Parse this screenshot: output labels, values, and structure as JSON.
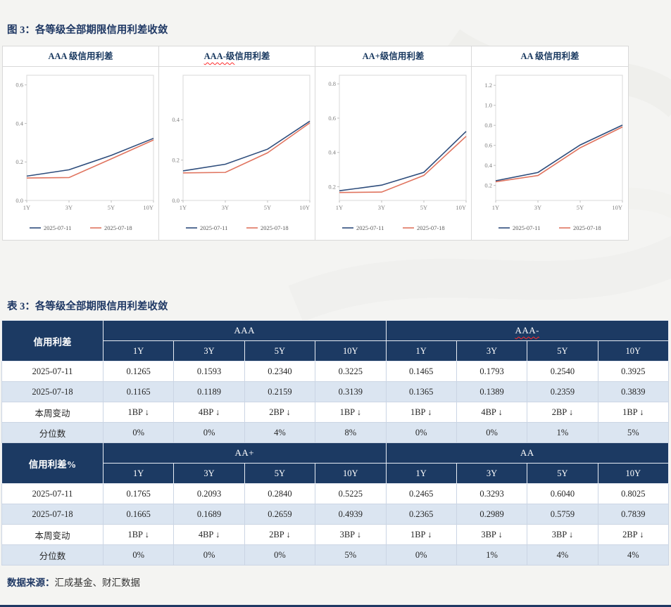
{
  "page": {
    "figure_title": "图 3：各等级全部期限信用利差收敛",
    "table_title": "表 3：各等级全部期限信用利差收敛",
    "source_label": "数据来源：",
    "source_text": "汇成基金、财汇数据"
  },
  "colors": {
    "series_blue": "#2e4d7c",
    "series_red": "#e0745f",
    "header_bg": "#1c3a63",
    "row_alt_bg": "#dbe5f1",
    "title_navy": "#1f3864",
    "axis_gray": "#7f7f7f"
  },
  "chart_data": [
    {
      "type": "line",
      "id": "aaa",
      "title_parts": [
        {
          "text": "AAA 级信用利差",
          "squiggle": false
        }
      ],
      "categories": [
        "1Y",
        "3Y",
        "5Y",
        "10Y"
      ],
      "ylim": [
        0,
        0.65
      ],
      "y_ticks": [
        0.0,
        0.2,
        0.4,
        0.6
      ],
      "legend_position": "bottom",
      "grid": false,
      "series": [
        {
          "name": "2025-07-11",
          "color": "#2e4d7c",
          "values": [
            0.1265,
            0.1593,
            0.234,
            0.3225
          ]
        },
        {
          "name": "2025-07-18",
          "color": "#e0745f",
          "values": [
            0.1165,
            0.1189,
            0.2159,
            0.3139
          ]
        }
      ]
    },
    {
      "type": "line",
      "id": "aaa-minus",
      "title_parts": [
        {
          "text": "AAA-级",
          "squiggle": true
        },
        {
          "text": "信用利差",
          "squiggle": false
        }
      ],
      "categories": [
        "1Y",
        "3Y",
        "5Y",
        "10Y"
      ],
      "ylim": [
        0,
        0.62
      ],
      "y_ticks": [
        0.0,
        0.2,
        0.4
      ],
      "legend_position": "bottom",
      "grid": false,
      "series": [
        {
          "name": "2025-07-11",
          "color": "#2e4d7c",
          "values": [
            0.1465,
            0.1793,
            0.254,
            0.3925
          ]
        },
        {
          "name": "2025-07-18",
          "color": "#e0745f",
          "values": [
            0.1365,
            0.1389,
            0.2359,
            0.3839
          ]
        }
      ]
    },
    {
      "type": "line",
      "id": "aa-plus",
      "title_parts": [
        {
          "text": "AA+级信用利差",
          "squiggle": false
        }
      ],
      "categories": [
        "1Y",
        "3Y",
        "5Y",
        "10Y"
      ],
      "ylim": [
        0.12,
        0.85
      ],
      "y_ticks": [
        0.2,
        0.4,
        0.6,
        0.8
      ],
      "legend_position": "bottom",
      "grid": false,
      "series": [
        {
          "name": "2025-07-11",
          "color": "#2e4d7c",
          "values": [
            0.1765,
            0.2093,
            0.284,
            0.5225
          ]
        },
        {
          "name": "2025-07-18",
          "color": "#e0745f",
          "values": [
            0.1665,
            0.1689,
            0.2659,
            0.4939
          ]
        }
      ]
    },
    {
      "type": "line",
      "id": "aa",
      "title_parts": [
        {
          "text": "AA 级信用利差",
          "squiggle": false
        }
      ],
      "categories": [
        "1Y",
        "3Y",
        "5Y",
        "10Y"
      ],
      "ylim": [
        0.05,
        1.3
      ],
      "y_ticks": [
        0.2,
        0.4,
        0.6,
        0.8,
        1.0,
        1.2
      ],
      "legend_position": "bottom",
      "grid": false,
      "series": [
        {
          "name": "2025-07-11",
          "color": "#2e4d7c",
          "values": [
            0.2465,
            0.3293,
            0.604,
            0.8025
          ]
        },
        {
          "name": "2025-07-18",
          "color": "#e0745f",
          "values": [
            0.2365,
            0.2989,
            0.5759,
            0.7839
          ]
        }
      ]
    }
  ],
  "table": {
    "blocks": [
      {
        "corner_label": "信用利差",
        "groups": [
          {
            "label": "AAA",
            "squiggle": false
          },
          {
            "label": "AAA-",
            "squiggle": true
          }
        ],
        "col_headers": [
          "1Y",
          "3Y",
          "5Y",
          "10Y",
          "1Y",
          "3Y",
          "5Y",
          "10Y"
        ],
        "rows": [
          {
            "label": "2025-07-11",
            "cells": [
              "0.1265",
              "0.1593",
              "0.2340",
              "0.3225",
              "0.1465",
              "0.1793",
              "0.2540",
              "0.3925"
            ]
          },
          {
            "label": "2025-07-18",
            "cells": [
              "0.1165",
              "0.1189",
              "0.2159",
              "0.3139",
              "0.1365",
              "0.1389",
              "0.2359",
              "0.3839"
            ]
          },
          {
            "label": "本周变动",
            "cells": [
              "1BP ↓",
              "4BP ↓",
              "2BP ↓",
              "1BP ↓",
              "1BP ↓",
              "4BP ↓",
              "2BP ↓",
              "1BP ↓"
            ]
          },
          {
            "label": "分位数",
            "cells": [
              "0%",
              "0%",
              "4%",
              "8%",
              "0%",
              "0%",
              "1%",
              "5%"
            ]
          }
        ]
      },
      {
        "corner_label": "信用利差%",
        "groups": [
          {
            "label": "AA+",
            "squiggle": false
          },
          {
            "label": "AA",
            "squiggle": false
          }
        ],
        "col_headers": [
          "1Y",
          "3Y",
          "5Y",
          "10Y",
          "1Y",
          "3Y",
          "5Y",
          "10Y"
        ],
        "rows": [
          {
            "label": "2025-07-11",
            "cells": [
              "0.1765",
              "0.2093",
              "0.2840",
              "0.5225",
              "0.2465",
              "0.3293",
              "0.6040",
              "0.8025"
            ]
          },
          {
            "label": "2025-07-18",
            "cells": [
              "0.1665",
              "0.1689",
              "0.2659",
              "0.4939",
              "0.2365",
              "0.2989",
              "0.5759",
              "0.7839"
            ]
          },
          {
            "label": "本周变动",
            "cells": [
              "1BP ↓",
              "4BP ↓",
              "2BP ↓",
              "3BP ↓",
              "1BP ↓",
              "3BP ↓",
              "3BP ↓",
              "2BP ↓"
            ]
          },
          {
            "label": "分位数",
            "cells": [
              "0%",
              "0%",
              "0%",
              "5%",
              "0%",
              "1%",
              "4%",
              "4%"
            ]
          }
        ]
      }
    ]
  }
}
